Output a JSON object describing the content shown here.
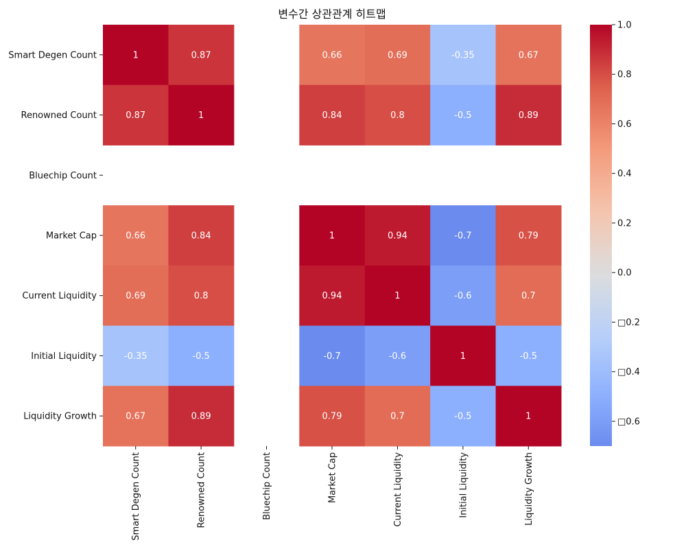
{
  "chart_data": {
    "type": "heatmap",
    "title": "변수간 상관관계 히트맵",
    "rows": [
      "Smart Degen Count",
      "Renowned Count",
      "Bluechip Count",
      "Market Cap",
      "Current Liquidity",
      "Initial Liquidity",
      "Liquidity Growth"
    ],
    "columns": [
      "Smart Degen Count",
      "Renowned Count",
      "Bluechip Count",
      "Market Cap",
      "Current Liquidity",
      "Initial Liquidity",
      "Liquidity Growth"
    ],
    "values": [
      [
        1,
        0.87,
        null,
        0.66,
        0.69,
        -0.35,
        0.67
      ],
      [
        0.87,
        1,
        null,
        0.84,
        0.8,
        -0.5,
        0.89
      ],
      [
        null,
        null,
        null,
        null,
        null,
        null,
        null
      ],
      [
        0.66,
        0.84,
        null,
        1,
        0.94,
        -0.7,
        0.79
      ],
      [
        0.69,
        0.8,
        null,
        0.94,
        1,
        -0.6,
        0.7
      ],
      [
        -0.35,
        -0.5,
        null,
        -0.7,
        -0.6,
        1,
        -0.5
      ],
      [
        0.67,
        0.89,
        null,
        0.79,
        0.7,
        -0.5,
        1
      ]
    ],
    "cell_labels": [
      [
        "1",
        "0.87",
        "",
        "0.66",
        "0.69",
        "-0.35",
        "0.67"
      ],
      [
        "0.87",
        "1",
        "",
        "0.84",
        "0.8",
        "-0.5",
        "0.89"
      ],
      [
        "",
        "",
        "",
        "",
        "",
        "",
        ""
      ],
      [
        "0.66",
        "0.84",
        "",
        "1",
        "0.94",
        "-0.7",
        "0.79"
      ],
      [
        "0.69",
        "0.8",
        "",
        "0.94",
        "1",
        "-0.6",
        "0.7"
      ],
      [
        "-0.35",
        "-0.5",
        "",
        "-0.7",
        "-0.6",
        "1",
        "-0.5"
      ],
      [
        "0.67",
        "0.89",
        "",
        "0.79",
        "0.7",
        "-0.5",
        "1"
      ]
    ],
    "colormap": "coolwarm",
    "colorbar": {
      "range": [
        -0.7,
        1.0
      ],
      "ticks": [
        1.0,
        0.8,
        0.6,
        0.4,
        0.2,
        0.0,
        -0.2,
        -0.4,
        -0.6
      ],
      "tick_labels": [
        "1.0",
        "0.8",
        "0.6",
        "0.4",
        "0.2",
        "0.0",
        "□0.2",
        "□0.4",
        "□0.6"
      ]
    }
  }
}
